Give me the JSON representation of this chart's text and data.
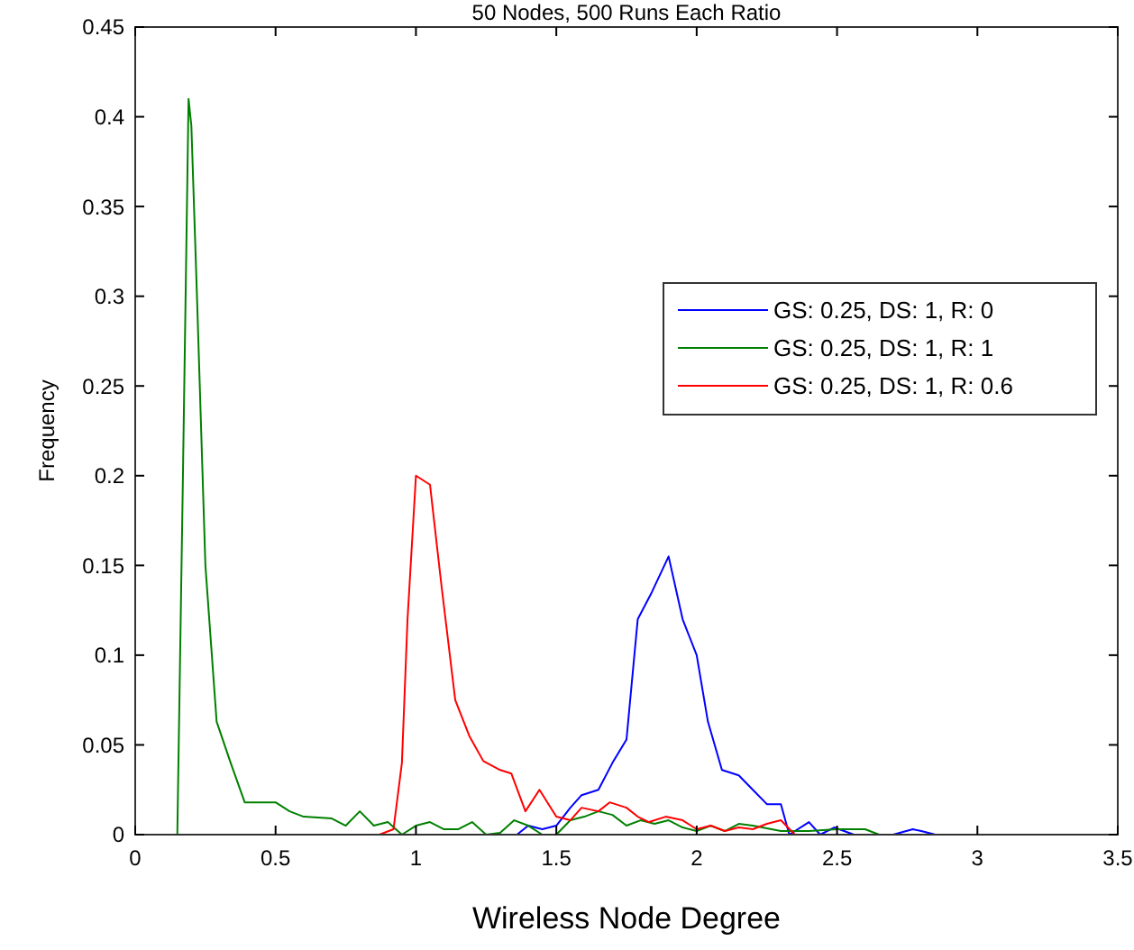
{
  "chart_data": {
    "type": "line",
    "title": "50 Nodes, 500 Runs Each Ratio",
    "xlabel": "Wireless Node Degree",
    "ylabel": "Frequency",
    "xlim": [
      0,
      3.5
    ],
    "ylim": [
      0,
      0.45
    ],
    "xticks": [
      0,
      0.5,
      1,
      1.5,
      2,
      2.5,
      3,
      3.5
    ],
    "yticks": [
      0,
      0.05,
      0.1,
      0.15,
      0.2,
      0.25,
      0.3,
      0.35,
      0.4,
      0.45
    ],
    "grid": false,
    "legend": "top right",
    "marker": "none",
    "line_style": "solid",
    "series": [
      {
        "name": "GS: 0.25, DS: 1, R: 0",
        "color": "#0000ff",
        "x": [
          1.36,
          1.4,
          1.45,
          1.5,
          1.55,
          1.59,
          1.65,
          1.7,
          1.75,
          1.79,
          1.84,
          1.9,
          1.95,
          2.0,
          2.04,
          2.09,
          2.15,
          2.2,
          2.25,
          2.3,
          2.33,
          2.4,
          2.44,
          2.49,
          2.56,
          2.7,
          2.77,
          2.8,
          2.85
        ],
        "values": [
          0,
          0.005,
          0.003,
          0.005,
          0.015,
          0.022,
          0.025,
          0.04,
          0.053,
          0.12,
          0.135,
          0.155,
          0.12,
          0.1,
          0.063,
          0.036,
          0.033,
          0.025,
          0.017,
          0.017,
          0,
          0.007,
          0,
          0.004,
          0,
          0,
          0.003,
          0.002,
          0
        ]
      },
      {
        "name": "GS: 0.25, DS: 1, R: 1",
        "color": "#008000",
        "x": [
          0.15,
          0.17,
          0.19,
          0.2,
          0.22,
          0.25,
          0.29,
          0.34,
          0.39,
          0.5,
          0.55,
          0.6,
          0.7,
          0.75,
          0.8,
          0.85,
          0.9,
          0.95,
          1.0,
          1.05,
          1.1,
          1.15,
          1.2,
          1.25,
          1.3,
          1.35,
          1.4,
          1.45,
          1.5,
          1.55,
          1.6,
          1.65,
          1.7,
          1.75,
          1.8,
          1.85,
          1.9,
          1.95,
          2.0,
          2.05,
          2.1,
          2.15,
          2.2,
          2.3,
          2.4,
          2.5,
          2.6,
          2.65
        ],
        "values": [
          0,
          0.2,
          0.41,
          0.395,
          0.3,
          0.15,
          0.063,
          0.04,
          0.018,
          0.018,
          0.013,
          0.01,
          0.009,
          0.005,
          0.013,
          0.005,
          0.007,
          0,
          0.005,
          0.007,
          0.003,
          0.003,
          0.007,
          0,
          0.001,
          0.008,
          0.005,
          0,
          0,
          0.008,
          0.01,
          0.013,
          0.011,
          0.005,
          0.008,
          0.006,
          0.008,
          0.004,
          0.002,
          0.005,
          0.002,
          0.006,
          0.005,
          0.002,
          0.002,
          0.003,
          0.003,
          0
        ]
      },
      {
        "name": "GS: 0.25, DS: 1, R: 0.6",
        "color": "#ff0000",
        "x": [
          0.87,
          0.92,
          0.95,
          0.97,
          1.0,
          1.05,
          1.09,
          1.14,
          1.19,
          1.24,
          1.3,
          1.34,
          1.39,
          1.44,
          1.5,
          1.55,
          1.59,
          1.65,
          1.69,
          1.75,
          1.79,
          1.83,
          1.89,
          1.95,
          2.0,
          2.05,
          2.1,
          2.15,
          2.2,
          2.25,
          2.3,
          2.35
        ],
        "values": [
          0,
          0.003,
          0.04,
          0.12,
          0.2,
          0.195,
          0.14,
          0.075,
          0.055,
          0.041,
          0.036,
          0.034,
          0.013,
          0.025,
          0.01,
          0.008,
          0.015,
          0.013,
          0.018,
          0.015,
          0.01,
          0.007,
          0.01,
          0.008,
          0.003,
          0.005,
          0.002,
          0.004,
          0.003,
          0.006,
          0.008,
          0
        ]
      }
    ]
  }
}
